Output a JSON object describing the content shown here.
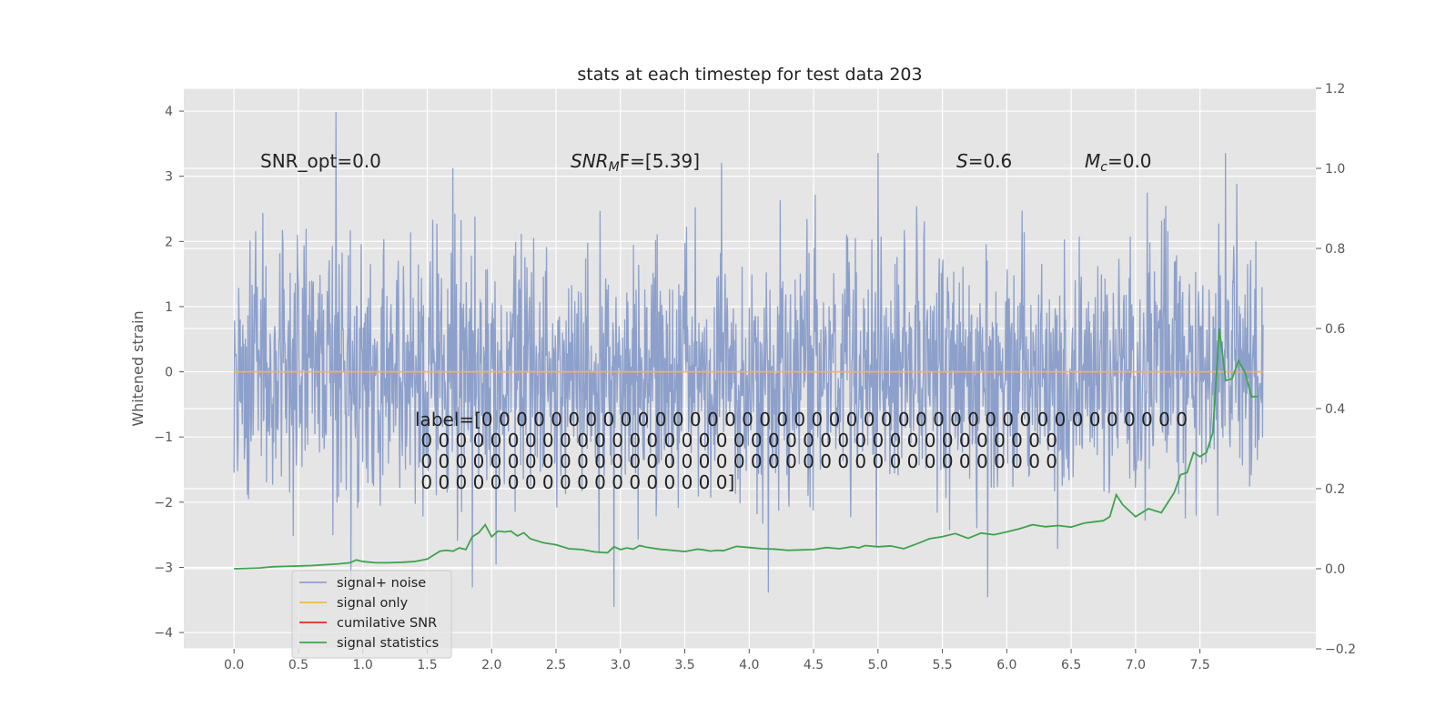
{
  "chart_data": {
    "type": "line",
    "title": "stats at each timestep for test data 203",
    "ylabel": "Whitened strain",
    "xlabel": "",
    "xlim": [
      -0.39,
      8.4
    ],
    "ylim": [
      -4.25,
      4.35
    ],
    "y2lim": [
      -0.2,
      1.2
    ],
    "x_ticks": [
      "0.0",
      "0.5",
      "1.0",
      "1.5",
      "2.0",
      "2.5",
      "3.0",
      "3.5",
      "4.0",
      "4.5",
      "5.0",
      "5.5",
      "6.0",
      "6.5",
      "7.0",
      "7.5"
    ],
    "y_ticks": [
      "4",
      "3",
      "2",
      "1",
      "0",
      "−1",
      "−2",
      "−3",
      "−4"
    ],
    "y2_ticks": [
      "1.2",
      "1.0",
      "0.8",
      "0.6",
      "0.4",
      "0.2",
      "0.0",
      "−0.2"
    ],
    "annotations": {
      "snr_opt": "SNR_opt=0.0",
      "snr_mf_main": "SNR",
      "snr_mf_sub": "M",
      "snr_mf_rest": "F=[5.39]",
      "s_var": "S",
      "s_rest": "=0.6",
      "mc_var": "M",
      "mc_sub": "c",
      "mc_rest": "=0.0",
      "label_lines": [
        "label=[0 0 0 0 0 0 0 0 0 0 0 0 0 0 0 0 0 0 0 0 0 0 0 0 0 0 0 0 0 0 0 0 0 0 0 0 0 0 0 0 0",
        " 0 0 0 0 0 0 0 0 0 0 0 0 0 0 0 0 0 0 0 0 0 0 0 0 0 0 0 0 0 0 0 0 0 0 0 0 0",
        " 0 0 0 0 0 0 0 0 0 0 0 0 0 0 0 0 0 0 0 0 0 0 0 0 0 0 0 0 0 0 0 0 0 0 0 0 0",
        " 0 0 0 0 0 0 0 0 0 0 0 0 0 0 0 0 0 0]"
      ]
    },
    "legend": {
      "position": "lower-left",
      "entries": [
        {
          "name": "signal+ noise",
          "color": "#8da0cb"
        },
        {
          "name": "signal only",
          "color": "#f2b84b"
        },
        {
          "name": "cumilative SNR",
          "color": "#e8291c"
        },
        {
          "name": "signal statistics",
          "color": "#3fa34d"
        }
      ]
    },
    "series": [
      {
        "name": "signal+ noise",
        "axis": "left",
        "color": "#8da0cb",
        "x_range": [
          0.0,
          7.99
        ],
        "typical_band": [
          -1.5,
          1.5
        ],
        "extremes": [
          {
            "x": 0.79,
            "y": 3.98
          },
          {
            "x": 1.7,
            "y": 3.12
          },
          {
            "x": 5.0,
            "y": 3.35
          },
          {
            "x": 7.7,
            "y": 3.35
          },
          {
            "x": 2.95,
            "y": -3.6
          },
          {
            "x": 5.85,
            "y": -3.45
          },
          {
            "x": 1.85,
            "y": -3.3
          },
          {
            "x": 4.15,
            "y": -3.38
          }
        ]
      },
      {
        "name": "signal only",
        "axis": "left",
        "color": "#f2b84b",
        "x": [
          0.0,
          7.99
        ],
        "y": [
          0.0,
          0.0
        ]
      },
      {
        "name": "signal statistics",
        "axis": "right",
        "color": "#3fa34d",
        "x": [
          0.0,
          0.2,
          0.3,
          0.6,
          0.8,
          0.9,
          0.95,
          1.0,
          1.1,
          1.2,
          1.3,
          1.4,
          1.5,
          1.55,
          1.6,
          1.65,
          1.7,
          1.75,
          1.8,
          1.85,
          1.9,
          1.95,
          2.0,
          2.05,
          2.1,
          2.15,
          2.2,
          2.25,
          2.3,
          2.35,
          2.4,
          2.5,
          2.6,
          2.7,
          2.8,
          2.9,
          2.95,
          3.0,
          3.05,
          3.1,
          3.15,
          3.2,
          3.3,
          3.4,
          3.5,
          3.6,
          3.65,
          3.7,
          3.75,
          3.8,
          3.9,
          4.0,
          4.1,
          4.2,
          4.3,
          4.4,
          4.5,
          4.6,
          4.7,
          4.8,
          4.85,
          4.9,
          5.0,
          5.1,
          5.2,
          5.3,
          5.4,
          5.5,
          5.6,
          5.7,
          5.8,
          5.9,
          6.0,
          6.1,
          6.2,
          6.3,
          6.4,
          6.5,
          6.6,
          6.7,
          6.75,
          6.8,
          6.85,
          6.9,
          7.0,
          7.1,
          7.2,
          7.3,
          7.35,
          7.4,
          7.45,
          7.5,
          7.55,
          7.6,
          7.65,
          7.7,
          7.75,
          7.8,
          7.85,
          7.9,
          7.95
        ],
        "y": [
          0.0,
          0.002,
          0.005,
          0.008,
          0.012,
          0.015,
          0.022,
          0.018,
          0.015,
          0.015,
          0.016,
          0.018,
          0.024,
          0.034,
          0.044,
          0.046,
          0.044,
          0.052,
          0.048,
          0.08,
          0.09,
          0.11,
          0.08,
          0.094,
          0.092,
          0.094,
          0.082,
          0.09,
          0.075,
          0.07,
          0.065,
          0.06,
          0.05,
          0.048,
          0.042,
          0.04,
          0.055,
          0.048,
          0.052,
          0.049,
          0.058,
          0.054,
          0.049,
          0.046,
          0.043,
          0.049,
          0.047,
          0.044,
          0.046,
          0.045,
          0.056,
          0.053,
          0.05,
          0.049,
          0.046,
          0.047,
          0.048,
          0.053,
          0.05,
          0.055,
          0.052,
          0.058,
          0.055,
          0.057,
          0.05,
          0.062,
          0.075,
          0.08,
          0.088,
          0.076,
          0.089,
          0.085,
          0.092,
          0.1,
          0.11,
          0.105,
          0.108,
          0.104,
          0.114,
          0.118,
          0.12,
          0.13,
          0.185,
          0.16,
          0.13,
          0.15,
          0.14,
          0.19,
          0.235,
          0.24,
          0.29,
          0.28,
          0.29,
          0.34,
          0.6,
          0.47,
          0.475,
          0.52,
          0.49,
          0.43,
          0.43
        ]
      }
    ]
  }
}
